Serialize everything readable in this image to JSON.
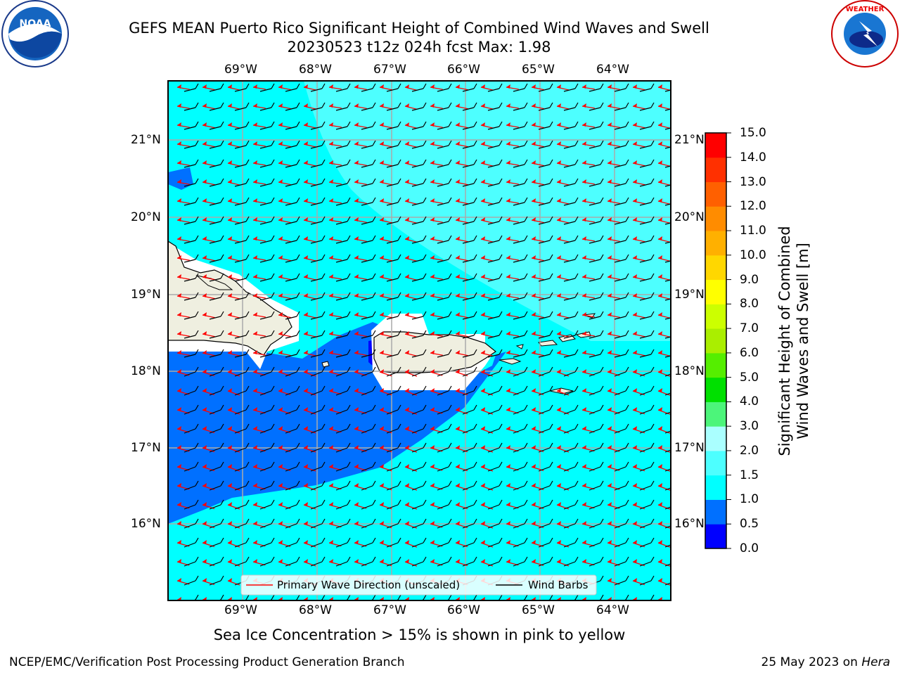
{
  "title_line1": "GEFS MEAN Puerto Rico Significant Height of Combined Wind Waves and Swell",
  "title_line2": "20230523 t12z 024h fcst   Max: 1.98",
  "lon_ticks": [
    "69°W",
    "68°W",
    "67°W",
    "66°W",
    "65°W",
    "64°W"
  ],
  "lat_ticks": [
    "21°N",
    "20°N",
    "19°N",
    "18°N",
    "17°N",
    "16°N"
  ],
  "legend": {
    "wave_dir": "Primary Wave Direction (unscaled)",
    "wind_barbs": "Wind Barbs"
  },
  "colorbar": {
    "label": "Significant Height of Combined\nWind Waves and Swell [m]",
    "levels": [
      "0.0",
      "0.5",
      "1.0",
      "1.5",
      "2.0",
      "3.0",
      "4.0",
      "5.0",
      "6.0",
      "7.0",
      "8.0",
      "9.0",
      "10.0",
      "11.0",
      "12.0",
      "13.0",
      "14.0",
      "15.0"
    ],
    "colors": [
      "#0000ff",
      "#0070ff",
      "#00ffff",
      "#4dffff",
      "#aaffff",
      "#4cf57a",
      "#00e000",
      "#55ee00",
      "#aaee00",
      "#ccff00",
      "#ffff00",
      "#ffd700",
      "#ffb000",
      "#ff8c00",
      "#ff6000",
      "#ff3000",
      "#ff0000"
    ]
  },
  "sea_ice_note": "Sea Ice Concentration > 15% is shown in pink to yellow",
  "footer_left": "NCEP/EMC/Verification Post Processing Product Generation Branch",
  "footer_date": "25 May 2023 on",
  "footer_host": "Hera",
  "colors": {
    "ocean_main": "#00ffff",
    "ocean_light": "#4dffff",
    "ocean_dark": "#0070ff",
    "land": "#efefe0",
    "wave_arrow": "#ff0000",
    "barb": "#000000"
  }
}
